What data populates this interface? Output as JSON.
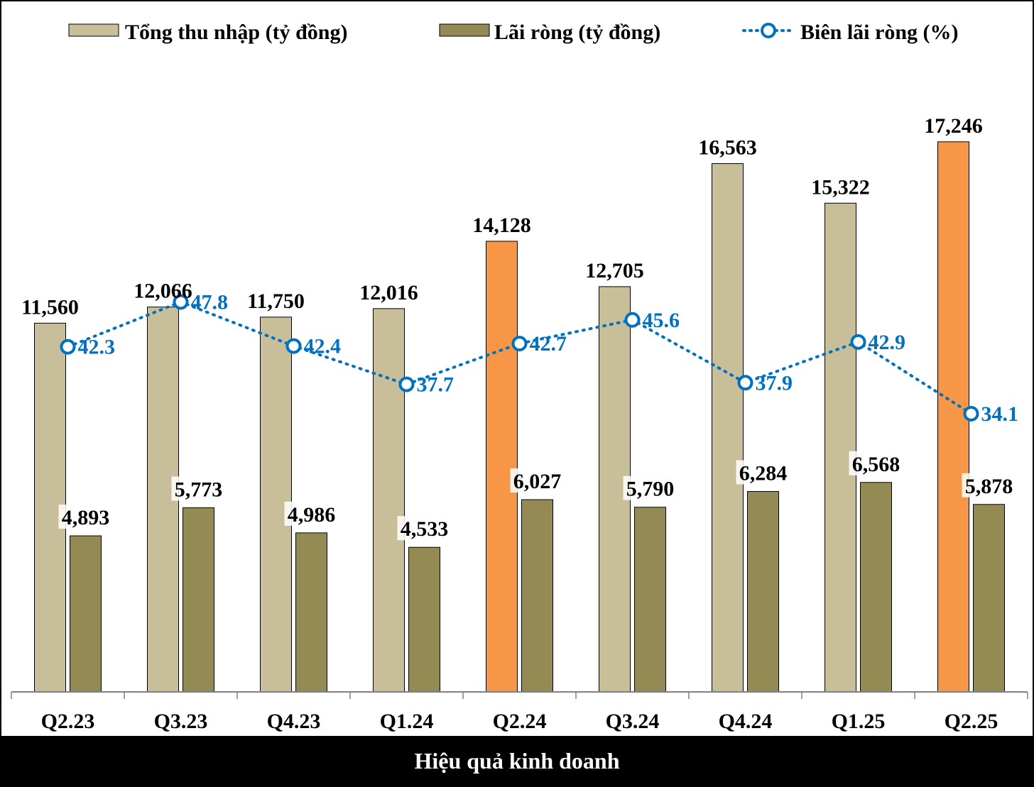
{
  "chart_data": {
    "type": "bar",
    "categories": [
      "Q2.23",
      "Q3.23",
      "Q4.23",
      "Q1.24",
      "Q2.24",
      "Q3.24",
      "Q4.24",
      "Q1.25",
      "Q2.25"
    ],
    "series": [
      {
        "name": "Tổng thu nhập (tỷ đồng)",
        "type": "bar",
        "values": [
          11560,
          12066,
          11750,
          12016,
          14128,
          12705,
          16563,
          15322,
          17246
        ],
        "labels": [
          "11,560",
          "12,066",
          "11,750",
          "12,016",
          "14,128",
          "12,705",
          "16,563",
          "15,322",
          "17,246"
        ],
        "color": "#C8BF9A",
        "highlight_color": "#F79646",
        "highlight_categories": [
          "Q2.24",
          "Q2.25"
        ]
      },
      {
        "name": "Lãi ròng (tỷ đồng)",
        "type": "bar",
        "values": [
          4893,
          5773,
          4986,
          4533,
          6027,
          5790,
          6284,
          6568,
          5878
        ],
        "labels": [
          "4,893",
          "5,773",
          "4,986",
          "4,533",
          "6,027",
          "5,790",
          "6,284",
          "6,568",
          "5,878"
        ],
        "color": "#948A54"
      },
      {
        "name": "Biên lãi ròng (%)",
        "type": "line",
        "axis": "secondary",
        "values": [
          42.3,
          47.8,
          42.4,
          37.7,
          42.7,
          45.6,
          37.9,
          42.9,
          34.1
        ],
        "labels": [
          "42.3",
          "47.8",
          "42.4",
          "37.7",
          "42.7",
          "45.6",
          "37.9",
          "42.9",
          "34.1"
        ],
        "color": "#0070C0",
        "line_style": "dotted",
        "marker": "hollow-circle"
      }
    ],
    "ylim": [
      0,
      20000
    ],
    "y2lim": [
      0,
      78.2
    ],
    "legend": "top",
    "grid": false,
    "footer": "Hiệu quả kinh doanh"
  }
}
